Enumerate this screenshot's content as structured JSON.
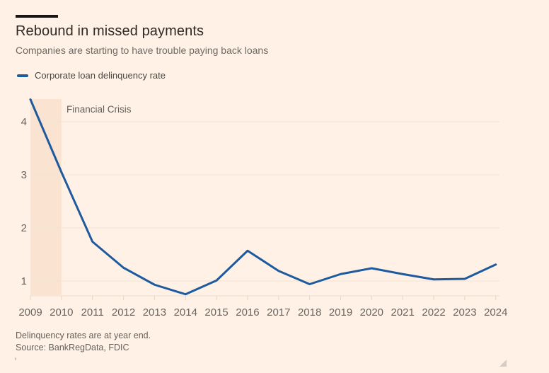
{
  "header": {
    "title": "Rebound in missed payments",
    "subtitle": "Companies are starting to have trouble paying back loans"
  },
  "legend": {
    "label": "Corporate loan delinquency rate"
  },
  "footer": {
    "note": "Delinquency rates are at year end.",
    "source": "Source: BankRegData, FDIC"
  },
  "colors": {
    "background": "#FFF1E5",
    "line": "#1E5A9E",
    "band": "#FAE3D0",
    "gridline": "#F3E4D4",
    "axis_line": "#EDDDCC",
    "tick": "#E7D7C6",
    "axis_text": "#6B6560",
    "annotation_text": "#655F5A",
    "title_text": "#2E2A26",
    "subtitle_text": "#6E6862",
    "accent_bar": "#181613"
  },
  "chart_data": {
    "type": "line",
    "title": "Rebound in missed payments",
    "subtitle": "Companies are starting to have trouble paying back loans",
    "xlabel": "",
    "ylabel": "",
    "grid": "horizontal",
    "legend_position": "top-left",
    "yticks": [
      1,
      2,
      3,
      4
    ],
    "ylim": [
      0.72,
      4.43
    ],
    "xticks": [
      "2009",
      "2010",
      "2011",
      "2012",
      "2013",
      "2014",
      "2015",
      "2016",
      "2017",
      "2018",
      "2019",
      "2020",
      "2021",
      "2022",
      "2023",
      "2024"
    ],
    "series": [
      {
        "name": "Corporate loan delinquency rate",
        "x": [
          2009,
          2010,
          2011,
          2012,
          2013,
          2014,
          2015,
          2016,
          2017,
          2018,
          2019,
          2020,
          2021,
          2022,
          2023,
          2024
        ],
        "values": [
          4.42,
          3.05,
          1.74,
          1.25,
          0.93,
          0.75,
          1.01,
          1.57,
          1.19,
          0.94,
          1.13,
          1.24,
          1.13,
          1.03,
          1.04,
          1.31
        ]
      }
    ],
    "highlight_region": {
      "label": "Financial Crisis",
      "x_start": 2009,
      "x_end": 2010
    }
  }
}
